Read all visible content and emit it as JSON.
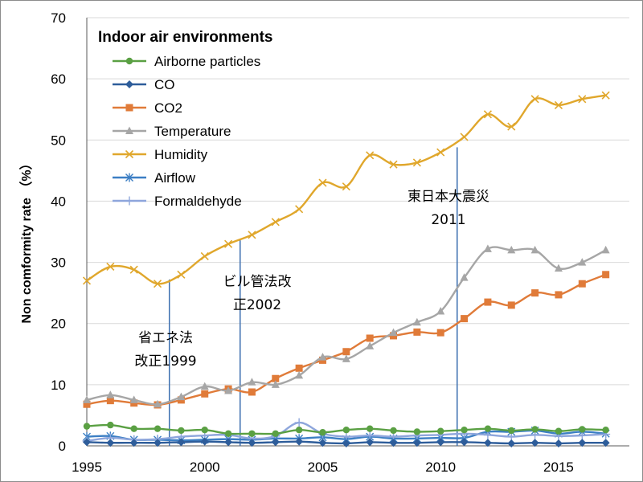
{
  "chart_data": {
    "type": "line",
    "title": "",
    "xlabel": "",
    "ylabel": "Non comformity rate （%）",
    "xlim": [
      1995,
      2018
    ],
    "ylim": [
      0,
      70
    ],
    "x_ticks": [
      "1995",
      "2000",
      "2005",
      "2010",
      "2015"
    ],
    "y_ticks": [
      "0",
      "10",
      "20",
      "30",
      "40",
      "50",
      "60",
      "70"
    ],
    "grid": "horizontal",
    "legend_title": "Indoor air environments",
    "legend_position": "top-left",
    "x": [
      1995,
      1996,
      1997,
      1998,
      1999,
      2000,
      2001,
      2002,
      2003,
      2004,
      2005,
      2006,
      2007,
      2008,
      2009,
      2010,
      2011,
      2012,
      2013,
      2014,
      2015,
      2016,
      2017
    ],
    "series": [
      {
        "name": "Airborne particles",
        "color": "#5aa043",
        "marker": "circle",
        "values": [
          3.2,
          3.4,
          2.8,
          2.8,
          2.5,
          2.6,
          2.0,
          2.0,
          2.0,
          2.6,
          2.2,
          2.6,
          2.8,
          2.5,
          2.3,
          2.4,
          2.6,
          2.8,
          2.5,
          2.7,
          2.4,
          2.7,
          2.6
        ]
      },
      {
        "name": "CO",
        "color": "#2e5d9a",
        "marker": "diamond",
        "values": [
          0.6,
          0.5,
          0.5,
          0.5,
          0.6,
          0.7,
          0.6,
          0.5,
          0.6,
          0.7,
          0.5,
          0.4,
          0.6,
          0.5,
          0.5,
          0.6,
          0.6,
          0.5,
          0.4,
          0.5,
          0.4,
          0.5,
          0.5
        ]
      },
      {
        "name": "CO2",
        "color": "#e07b39",
        "marker": "square",
        "values": [
          6.8,
          7.4,
          7.0,
          6.7,
          7.5,
          8.5,
          9.3,
          8.8,
          11.0,
          12.7,
          14.0,
          15.4,
          17.6,
          18.0,
          18.6,
          18.5,
          20.8,
          23.5,
          23.0,
          25.0,
          24.7,
          26.5,
          28.0
        ]
      },
      {
        "name": "Temperature",
        "color": "#a6a6a6",
        "marker": "triangle",
        "values": [
          7.5,
          8.3,
          7.5,
          6.8,
          8.0,
          9.7,
          9.0,
          10.4,
          10.0,
          11.5,
          14.5,
          14.2,
          16.3,
          18.5,
          20.2,
          22.0,
          27.5,
          32.2,
          32.0,
          32.0,
          29.0,
          30.0,
          32.0
        ]
      },
      {
        "name": "Humidity",
        "color": "#e0a72c",
        "marker": "x",
        "values": [
          27.0,
          29.3,
          28.8,
          26.5,
          28.0,
          31.0,
          33.0,
          34.5,
          36.6,
          38.7,
          43.0,
          42.4,
          47.5,
          46.0,
          46.3,
          48.0,
          50.5,
          54.2,
          52.2,
          56.7,
          55.7,
          56.7,
          57.3
        ]
      },
      {
        "name": "Airflow",
        "color": "#3c7fc4",
        "marker": "asterisk",
        "values": [
          1.5,
          1.6,
          1.0,
          1.0,
          0.9,
          1.0,
          1.1,
          1.0,
          1.2,
          1.2,
          1.4,
          1.1,
          1.5,
          1.2,
          1.2,
          1.3,
          1.3,
          2.3,
          2.3,
          2.5,
          2.0,
          2.3,
          2.0
        ]
      },
      {
        "name": "Formaldehyde",
        "color": "#8ea6dc",
        "marker": "plus",
        "values": [
          0.8,
          1.3,
          1.0,
          1.1,
          1.5,
          1.7,
          1.8,
          1.2,
          1.6,
          3.8,
          2.0,
          1.5,
          1.7,
          1.5,
          1.7,
          1.8,
          2.0,
          1.8,
          1.5,
          1.8,
          1.6,
          1.7,
          1.9
        ]
      }
    ],
    "annotations": [
      {
        "lines": [
          "省エネ法",
          "改正1999"
        ],
        "x": 1998.5,
        "y_from": 0,
        "y_to": 27.2
      },
      {
        "lines": [
          "ビル管法改",
          "正2002"
        ],
        "x": 2001.5,
        "y_from": 0,
        "y_to": 33.7
      },
      {
        "lines": [
          "東日本大震災",
          "2011"
        ],
        "x": 2010.7,
        "y_from": 0,
        "y_to": 48.8
      }
    ]
  }
}
